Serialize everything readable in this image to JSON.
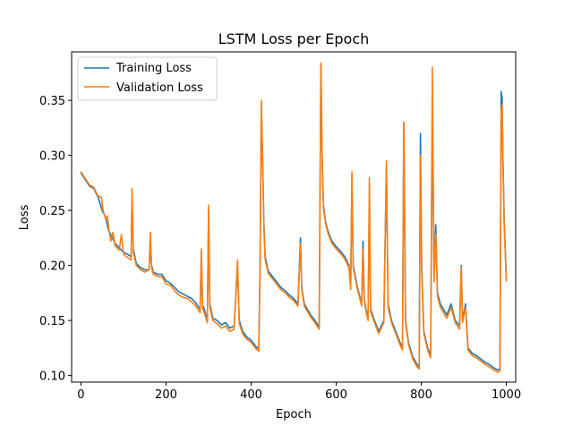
{
  "chart_data": {
    "type": "line",
    "title": "LSTM Loss per Epoch",
    "xlabel": "Epoch",
    "ylabel": "Loss",
    "xlim": [
      -22,
      1022
    ],
    "ylim": [
      0.094,
      0.394
    ],
    "x_ticks": [
      0,
      200,
      400,
      600,
      800,
      1000
    ],
    "y_ticks": [
      0.1,
      0.15,
      0.2,
      0.25,
      0.3,
      0.35
    ],
    "grid": false,
    "legend_position": "top-left",
    "series": [
      {
        "name": "Training Loss",
        "color": "#1f77b4",
        "points": [
          [
            0,
            0.284
          ],
          [
            10,
            0.278
          ],
          [
            20,
            0.272
          ],
          [
            30,
            0.27
          ],
          [
            40,
            0.262
          ],
          [
            50,
            0.25
          ],
          [
            55,
            0.246
          ],
          [
            60,
            0.24
          ],
          [
            65,
            0.232
          ],
          [
            70,
            0.228
          ],
          [
            80,
            0.22
          ],
          [
            90,
            0.216
          ],
          [
            100,
            0.212
          ],
          [
            110,
            0.21
          ],
          [
            118,
            0.208
          ],
          [
            120,
            0.262
          ],
          [
            123,
            0.215
          ],
          [
            130,
            0.202
          ],
          [
            140,
            0.198
          ],
          [
            150,
            0.196
          ],
          [
            160,
            0.196
          ],
          [
            163,
            0.224
          ],
          [
            166,
            0.2
          ],
          [
            170,
            0.194
          ],
          [
            180,
            0.192
          ],
          [
            190,
            0.192
          ],
          [
            200,
            0.186
          ],
          [
            210,
            0.184
          ],
          [
            220,
            0.18
          ],
          [
            230,
            0.176
          ],
          [
            240,
            0.174
          ],
          [
            250,
            0.172
          ],
          [
            260,
            0.17
          ],
          [
            270,
            0.166
          ],
          [
            280,
            0.16
          ],
          [
            283,
            0.212
          ],
          [
            286,
            0.164
          ],
          [
            290,
            0.16
          ],
          [
            297,
            0.15
          ],
          [
            300,
            0.25
          ],
          [
            303,
            0.165
          ],
          [
            310,
            0.152
          ],
          [
            320,
            0.15
          ],
          [
            330,
            0.146
          ],
          [
            340,
            0.148
          ],
          [
            350,
            0.143
          ],
          [
            360,
            0.145
          ],
          [
            368,
            0.2
          ],
          [
            372,
            0.15
          ],
          [
            380,
            0.14
          ],
          [
            390,
            0.135
          ],
          [
            400,
            0.132
          ],
          [
            410,
            0.127
          ],
          [
            418,
            0.124
          ],
          [
            421,
            0.2
          ],
          [
            424,
            0.345
          ],
          [
            427,
            0.3
          ],
          [
            430,
            0.24
          ],
          [
            433,
            0.208
          ],
          [
            440,
            0.195
          ],
          [
            450,
            0.19
          ],
          [
            460,
            0.185
          ],
          [
            470,
            0.18
          ],
          [
            480,
            0.177
          ],
          [
            490,
            0.173
          ],
          [
            500,
            0.17
          ],
          [
            510,
            0.165
          ],
          [
            516,
            0.225
          ],
          [
            519,
            0.18
          ],
          [
            525,
            0.165
          ],
          [
            540,
            0.155
          ],
          [
            550,
            0.15
          ],
          [
            555,
            0.147
          ],
          [
            560,
            0.144
          ],
          [
            564,
            0.383
          ],
          [
            567,
            0.3
          ],
          [
            570,
            0.255
          ],
          [
            575,
            0.24
          ],
          [
            580,
            0.232
          ],
          [
            590,
            0.222
          ],
          [
            600,
            0.217
          ],
          [
            610,
            0.213
          ],
          [
            620,
            0.208
          ],
          [
            630,
            0.2
          ],
          [
            634,
            0.18
          ],
          [
            637,
            0.28
          ],
          [
            640,
            0.2
          ],
          [
            650,
            0.18
          ],
          [
            660,
            0.165
          ],
          [
            663,
            0.222
          ],
          [
            666,
            0.17
          ],
          [
            670,
            0.16
          ],
          [
            675,
            0.152
          ],
          [
            678,
            0.265
          ],
          [
            681,
            0.16
          ],
          [
            690,
            0.15
          ],
          [
            700,
            0.14
          ],
          [
            712,
            0.15
          ],
          [
            718,
            0.29
          ],
          [
            722,
            0.165
          ],
          [
            730,
            0.15
          ],
          [
            740,
            0.14
          ],
          [
            750,
            0.13
          ],
          [
            756,
            0.125
          ],
          [
            759,
            0.33
          ],
          [
            763,
            0.15
          ],
          [
            770,
            0.13
          ],
          [
            780,
            0.117
          ],
          [
            790,
            0.11
          ],
          [
            795,
            0.108
          ],
          [
            798,
            0.32
          ],
          [
            801,
            0.2
          ],
          [
            806,
            0.14
          ],
          [
            815,
            0.125
          ],
          [
            822,
            0.118
          ],
          [
            826,
            0.348
          ],
          [
            830,
            0.19
          ],
          [
            834,
            0.237
          ],
          [
            838,
            0.175
          ],
          [
            845,
            0.165
          ],
          [
            860,
            0.155
          ],
          [
            870,
            0.165
          ],
          [
            880,
            0.15
          ],
          [
            890,
            0.145
          ],
          [
            894,
            0.2
          ],
          [
            897,
            0.15
          ],
          [
            904,
            0.165
          ],
          [
            910,
            0.125
          ],
          [
            920,
            0.12
          ],
          [
            930,
            0.118
          ],
          [
            940,
            0.115
          ],
          [
            950,
            0.112
          ],
          [
            960,
            0.11
          ],
          [
            970,
            0.107
          ],
          [
            980,
            0.105
          ],
          [
            985,
            0.106
          ],
          [
            988,
            0.358
          ],
          [
            990,
            0.352
          ],
          [
            992,
            0.3
          ],
          [
            995,
            0.24
          ],
          [
            1000,
            0.188
          ]
        ]
      },
      {
        "name": "Validation Loss",
        "color": "#ff7f0e",
        "points": [
          [
            0,
            0.285
          ],
          [
            10,
            0.279
          ],
          [
            20,
            0.273
          ],
          [
            30,
            0.271
          ],
          [
            40,
            0.263
          ],
          [
            48,
            0.262
          ],
          [
            52,
            0.25
          ],
          [
            58,
            0.242
          ],
          [
            62,
            0.245
          ],
          [
            66,
            0.232
          ],
          [
            70,
            0.222
          ],
          [
            75,
            0.23
          ],
          [
            80,
            0.218
          ],
          [
            90,
            0.214
          ],
          [
            95,
            0.228
          ],
          [
            100,
            0.21
          ],
          [
            110,
            0.207
          ],
          [
            118,
            0.205
          ],
          [
            120,
            0.27
          ],
          [
            123,
            0.212
          ],
          [
            130,
            0.2
          ],
          [
            140,
            0.196
          ],
          [
            150,
            0.194
          ],
          [
            160,
            0.196
          ],
          [
            163,
            0.23
          ],
          [
            166,
            0.198
          ],
          [
            170,
            0.192
          ],
          [
            180,
            0.19
          ],
          [
            190,
            0.19
          ],
          [
            200,
            0.183
          ],
          [
            210,
            0.182
          ],
          [
            220,
            0.177
          ],
          [
            230,
            0.173
          ],
          [
            240,
            0.171
          ],
          [
            250,
            0.17
          ],
          [
            260,
            0.167
          ],
          [
            270,
            0.163
          ],
          [
            280,
            0.157
          ],
          [
            283,
            0.215
          ],
          [
            286,
            0.161
          ],
          [
            290,
            0.157
          ],
          [
            297,
            0.148
          ],
          [
            300,
            0.255
          ],
          [
            303,
            0.162
          ],
          [
            310,
            0.15
          ],
          [
            320,
            0.147
          ],
          [
            330,
            0.143
          ],
          [
            340,
            0.145
          ],
          [
            350,
            0.14
          ],
          [
            360,
            0.142
          ],
          [
            368,
            0.205
          ],
          [
            372,
            0.147
          ],
          [
            380,
            0.138
          ],
          [
            390,
            0.133
          ],
          [
            400,
            0.13
          ],
          [
            410,
            0.125
          ],
          [
            418,
            0.122
          ],
          [
            421,
            0.2
          ],
          [
            424,
            0.35
          ],
          [
            427,
            0.295
          ],
          [
            430,
            0.235
          ],
          [
            433,
            0.205
          ],
          [
            440,
            0.193
          ],
          [
            450,
            0.188
          ],
          [
            460,
            0.183
          ],
          [
            470,
            0.178
          ],
          [
            480,
            0.175
          ],
          [
            490,
            0.171
          ],
          [
            500,
            0.168
          ],
          [
            510,
            0.163
          ],
          [
            516,
            0.22
          ],
          [
            519,
            0.178
          ],
          [
            525,
            0.163
          ],
          [
            540,
            0.153
          ],
          [
            550,
            0.148
          ],
          [
            555,
            0.145
          ],
          [
            560,
            0.142
          ],
          [
            564,
            0.384
          ],
          [
            567,
            0.295
          ],
          [
            570,
            0.252
          ],
          [
            575,
            0.238
          ],
          [
            580,
            0.23
          ],
          [
            590,
            0.22
          ],
          [
            600,
            0.215
          ],
          [
            610,
            0.211
          ],
          [
            620,
            0.206
          ],
          [
            630,
            0.198
          ],
          [
            634,
            0.178
          ],
          [
            637,
            0.285
          ],
          [
            640,
            0.198
          ],
          [
            650,
            0.178
          ],
          [
            660,
            0.163
          ],
          [
            663,
            0.215
          ],
          [
            666,
            0.168
          ],
          [
            670,
            0.158
          ],
          [
            675,
            0.15
          ],
          [
            678,
            0.28
          ],
          [
            681,
            0.158
          ],
          [
            690,
            0.148
          ],
          [
            700,
            0.138
          ],
          [
            712,
            0.148
          ],
          [
            718,
            0.295
          ],
          [
            722,
            0.162
          ],
          [
            730,
            0.148
          ],
          [
            740,
            0.138
          ],
          [
            750,
            0.128
          ],
          [
            756,
            0.123
          ],
          [
            759,
            0.33
          ],
          [
            763,
            0.148
          ],
          [
            770,
            0.128
          ],
          [
            780,
            0.115
          ],
          [
            790,
            0.108
          ],
          [
            795,
            0.106
          ],
          [
            798,
            0.3
          ],
          [
            801,
            0.195
          ],
          [
            806,
            0.138
          ],
          [
            815,
            0.123
          ],
          [
            822,
            0.116
          ],
          [
            826,
            0.38
          ],
          [
            830,
            0.185
          ],
          [
            834,
            0.228
          ],
          [
            838,
            0.172
          ],
          [
            845,
            0.162
          ],
          [
            860,
            0.152
          ],
          [
            870,
            0.162
          ],
          [
            880,
            0.148
          ],
          [
            890,
            0.142
          ],
          [
            894,
            0.198
          ],
          [
            897,
            0.148
          ],
          [
            904,
            0.162
          ],
          [
            910,
            0.123
          ],
          [
            920,
            0.118
          ],
          [
            930,
            0.116
          ],
          [
            940,
            0.113
          ],
          [
            950,
            0.11
          ],
          [
            960,
            0.108
          ],
          [
            970,
            0.105
          ],
          [
            980,
            0.103
          ],
          [
            985,
            0.104
          ],
          [
            988,
            0.34
          ],
          [
            990,
            0.346
          ],
          [
            992,
            0.295
          ],
          [
            995,
            0.235
          ],
          [
            1000,
            0.186
          ]
        ]
      }
    ]
  }
}
